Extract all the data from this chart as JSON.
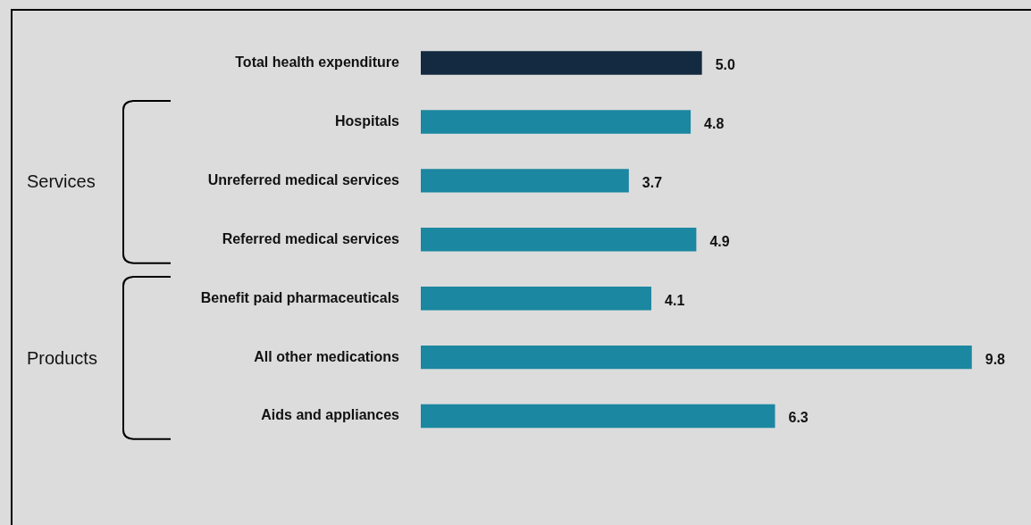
{
  "chart_data": {
    "type": "bar",
    "orientation": "horizontal",
    "categories": [
      "Total health expenditure",
      "Hospitals",
      "Unreferred medical services",
      "Referred medical services",
      "Benefit paid pharmaceuticals",
      "All other medications",
      "Aids and appliances"
    ],
    "values": [
      5.0,
      4.8,
      3.7,
      4.9,
      4.1,
      9.8,
      6.3
    ],
    "colors": [
      "#132a40",
      "#1b87a0",
      "#1b87a0",
      "#1b87a0",
      "#1b87a0",
      "#1b87a0",
      "#1b87a0"
    ],
    "value_labels": [
      "5.0",
      "4.8",
      "3.7",
      "4.9",
      "4.1",
      "9.8",
      "6.3"
    ],
    "tick_labels": "y",
    "legend": false,
    "annotations": [
      "Services",
      "Products"
    ]
  }
}
